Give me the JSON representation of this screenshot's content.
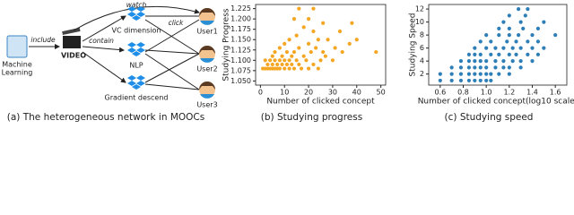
{
  "diagram": {
    "course": [
      "Machine",
      "Learning"
    ],
    "video": "VIDEO",
    "concepts": [
      "VC dimension",
      "NLP",
      "Gradient descend"
    ],
    "users": [
      "User1",
      "User2",
      "User3"
    ],
    "edges": {
      "include": "include",
      "contain": "contain",
      "watch": "watch",
      "click": "click"
    },
    "caption": "(a) The heterogeneous network in MOOCs"
  },
  "chart_data": [
    {
      "type": "scatter",
      "caption": "(b) Studying progress",
      "xlabel": "Number of clicked concept",
      "ylabel": "Studying Progress",
      "color": "#f5a623",
      "x": [
        1,
        2,
        3,
        4,
        5,
        6,
        7,
        8,
        10,
        12,
        14,
        17,
        20,
        24,
        3,
        5,
        7,
        9,
        11,
        13,
        16,
        22,
        2,
        4,
        6,
        8,
        10,
        12,
        15,
        19,
        25,
        30,
        5,
        9,
        13,
        18,
        27,
        6,
        11,
        14,
        21,
        26,
        34,
        48,
        8,
        16,
        23,
        31,
        10,
        20,
        37,
        12,
        24,
        28,
        40,
        15,
        22,
        33,
        18,
        26,
        38,
        14,
        20,
        16,
        22
      ],
      "values": [
        1.08,
        1.08,
        1.08,
        1.08,
        1.08,
        1.08,
        1.08,
        1.08,
        1.08,
        1.08,
        1.08,
        1.08,
        1.08,
        1.08,
        1.09,
        1.09,
        1.09,
        1.09,
        1.09,
        1.09,
        1.09,
        1.09,
        1.1,
        1.1,
        1.1,
        1.1,
        1.1,
        1.1,
        1.1,
        1.1,
        1.1,
        1.1,
        1.11,
        1.11,
        1.11,
        1.11,
        1.11,
        1.12,
        1.12,
        1.12,
        1.12,
        1.12,
        1.12,
        1.12,
        1.13,
        1.13,
        1.13,
        1.13,
        1.14,
        1.14,
        1.14,
        1.15,
        1.15,
        1.15,
        1.15,
        1.16,
        1.17,
        1.17,
        1.18,
        1.19,
        1.19,
        1.2,
        1.2,
        1.225,
        1.225
      ],
      "xlim": [
        -2,
        52
      ],
      "xticks": [
        0,
        10,
        20,
        30,
        40,
        50
      ],
      "ylim": [
        1.04,
        1.235
      ],
      "yticks": [
        {
          "value": 1.05,
          "label": "1.050"
        },
        {
          "value": 1.075,
          "label": "1.075"
        },
        {
          "value": 1.1,
          "label": "1.100"
        },
        {
          "value": 1.125,
          "label": "1.125"
        },
        {
          "value": 1.15,
          "label": "1.150"
        },
        {
          "value": 1.175,
          "label": "1.175"
        },
        {
          "value": 1.2,
          "label": "1.200"
        },
        {
          "value": 1.225,
          "label": "1.225"
        }
      ]
    },
    {
      "type": "scatter",
      "caption": "(c) Studying speed",
      "xlabel": "Number of clicked concept(log10 scale)",
      "ylabel": "Studying Speed",
      "color": "#2e7fb8",
      "x": [
        0.6,
        0.7,
        0.78,
        0.85,
        0.9,
        0.95,
        1.0,
        1.04,
        0.6,
        0.7,
        0.78,
        0.85,
        0.9,
        0.95,
        1.0,
        1.04,
        1.11,
        1.2,
        0.7,
        0.78,
        0.85,
        0.9,
        0.95,
        1.0,
        1.08,
        1.15,
        1.2,
        1.3,
        0.78,
        0.85,
        0.9,
        0.95,
        1.0,
        1.08,
        1.15,
        1.23,
        1.3,
        1.4,
        0.85,
        0.9,
        0.95,
        1.04,
        1.11,
        1.2,
        1.26,
        1.36,
        1.45,
        0.9,
        1.0,
        1.08,
        1.15,
        1.23,
        1.3,
        1.4,
        1.5,
        0.95,
        1.04,
        1.18,
        1.26,
        1.36,
        1.45,
        1.0,
        1.11,
        1.2,
        1.28,
        1.4,
        1.6,
        1.11,
        1.2,
        1.32,
        1.45,
        1.15,
        1.3,
        1.5,
        1.2,
        1.34,
        1.28,
        1.36
      ],
      "values": [
        1,
        1,
        1,
        1,
        1,
        1,
        1,
        1,
        2,
        2,
        2,
        2,
        2,
        2,
        2,
        2,
        2,
        2,
        3,
        3,
        3,
        3,
        3,
        3,
        3,
        3,
        3,
        3,
        4,
        4,
        4,
        4,
        4,
        4,
        4,
        4,
        4,
        4,
        5,
        5,
        5,
        5,
        5,
        5,
        5,
        5,
        5,
        6,
        6,
        6,
        6,
        6,
        6,
        6,
        6,
        7,
        7,
        7,
        7,
        7,
        7,
        8,
        8,
        8,
        8,
        8,
        8,
        9,
        9,
        9,
        9,
        10,
        10,
        10,
        11,
        11,
        12,
        12
      ],
      "xlim": [
        0.5,
        1.7
      ],
      "xticks": [
        0.6,
        0.8,
        {
          "value": 1.0,
          "label": "1.0"
        },
        1.2,
        1.4,
        1.6
      ],
      "ylim": [
        0.3,
        12.7
      ],
      "yticks": [
        2,
        4,
        6,
        8,
        10,
        12
      ]
    }
  ]
}
